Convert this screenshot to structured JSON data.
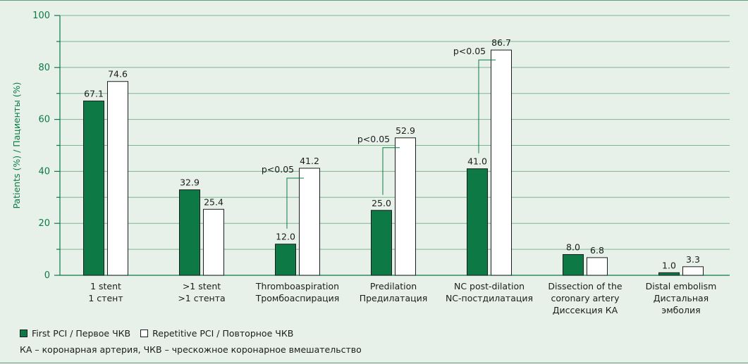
{
  "chart_data": {
    "type": "bar",
    "ylabel": "Patients (%) / Пациенты (%)",
    "ylim": [
      0,
      100
    ],
    "yticks": [
      0,
      20,
      40,
      60,
      80,
      100
    ],
    "grid": true,
    "categories": [
      [
        "1 stent",
        "1 стент"
      ],
      [
        ">1 stent",
        ">1 стента"
      ],
      [
        "Thromboaspiration",
        "Тромбоаспирация"
      ],
      [
        "Predilation",
        "Предилатация"
      ],
      [
        "NC post-dilation",
        "NC-постдилатация"
      ],
      [
        "Dissection of the",
        "coronary artery",
        "Диссекция КА"
      ],
      [
        "Distal embolism",
        "Дистальная",
        "эмболия"
      ]
    ],
    "series": [
      {
        "name": "First PCI / Первое ЧКВ",
        "values": [
          67.1,
          32.9,
          12.0,
          25.0,
          41.0,
          8.0,
          1.0
        ],
        "labels": [
          "67.1",
          "32.9",
          "12.0",
          "25.0",
          "41.0",
          "8.0",
          "1.0"
        ],
        "color": "#0d7a45"
      },
      {
        "name": "Repetitive PCI / Повторное ЧКВ",
        "values": [
          74.6,
          25.4,
          41.2,
          52.9,
          86.7,
          6.8,
          3.3
        ],
        "labels": [
          "74.6",
          "25.4",
          "41.2",
          "52.9",
          "86.7",
          "6.8",
          "3.3"
        ],
        "color": "#ffffff"
      }
    ],
    "annotations": [
      {
        "category_index": 2,
        "text": "p<0.05"
      },
      {
        "category_index": 3,
        "text": "p<0.05"
      },
      {
        "category_index": 4,
        "text": "p<0.05"
      }
    ],
    "legend_position": "bottom-left"
  },
  "footnote": "КА – коронарная артерия, ЧКВ – чрескожное коронарное вмешательство",
  "colors": {
    "axis": "#0d7a45",
    "grid": "#7fb591",
    "background": "#e7f1e9",
    "text": "#1c1c1c"
  }
}
